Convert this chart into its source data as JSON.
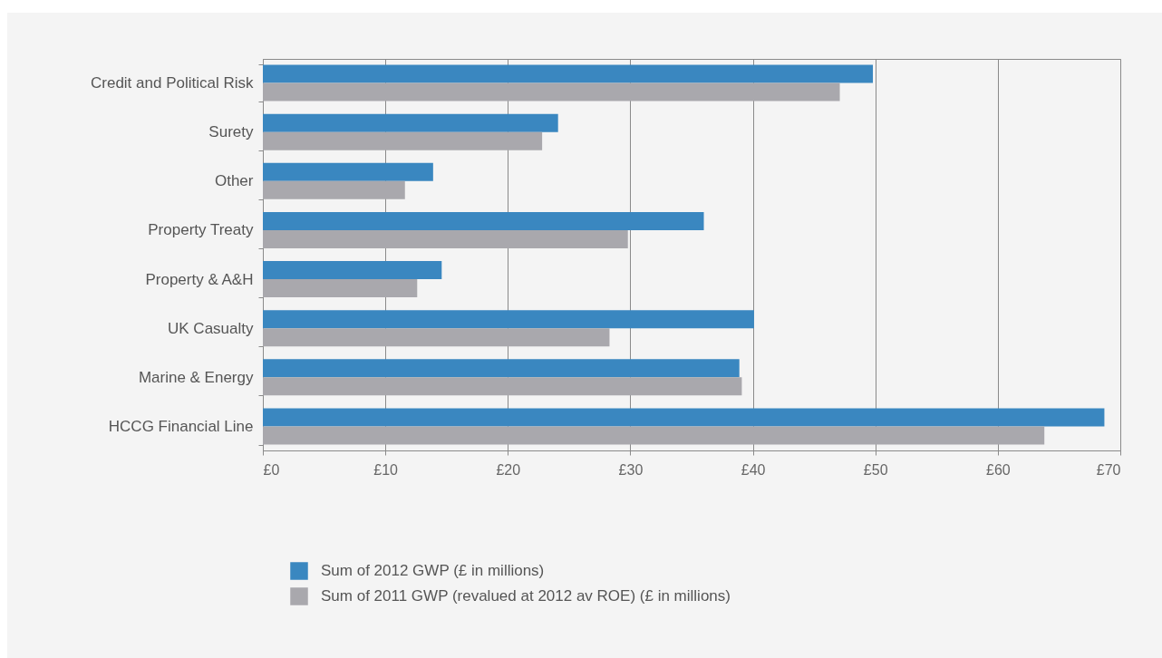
{
  "chart_data": {
    "type": "bar",
    "orientation": "horizontal",
    "categories": [
      "Credit and Political Risk",
      "Surety",
      "Other",
      "Property Treaty",
      "Property & A&H",
      "UK Casualty",
      "Marine & Energy",
      "HCCG Financial Line"
    ],
    "series": [
      {
        "name": "Sum of 2012 GWP (£ in millions)",
        "color": "#3a87c0",
        "values": [
          49.8,
          24.1,
          13.9,
          36.0,
          14.6,
          40.1,
          38.9,
          68.7
        ]
      },
      {
        "name": "Sum of 2011 GWP (revalued at 2012 av ROE) (£ in millions)",
        "color": "#a9a8ad",
        "values": [
          47.1,
          22.8,
          11.6,
          29.8,
          12.6,
          28.3,
          39.1,
          63.8
        ]
      }
    ],
    "xlim": [
      0,
      70
    ],
    "xticks": [
      {
        "value": 0,
        "label": "£0"
      },
      {
        "value": 10,
        "label": "£10"
      },
      {
        "value": 20,
        "label": "£20"
      },
      {
        "value": 30,
        "label": "£30"
      },
      {
        "value": 40,
        "label": "£40"
      },
      {
        "value": 50,
        "label": "£50"
      },
      {
        "value": 60,
        "label": "£60"
      },
      {
        "value": 70,
        "label": "£70"
      }
    ],
    "grid": "x",
    "legend": "bottom"
  }
}
